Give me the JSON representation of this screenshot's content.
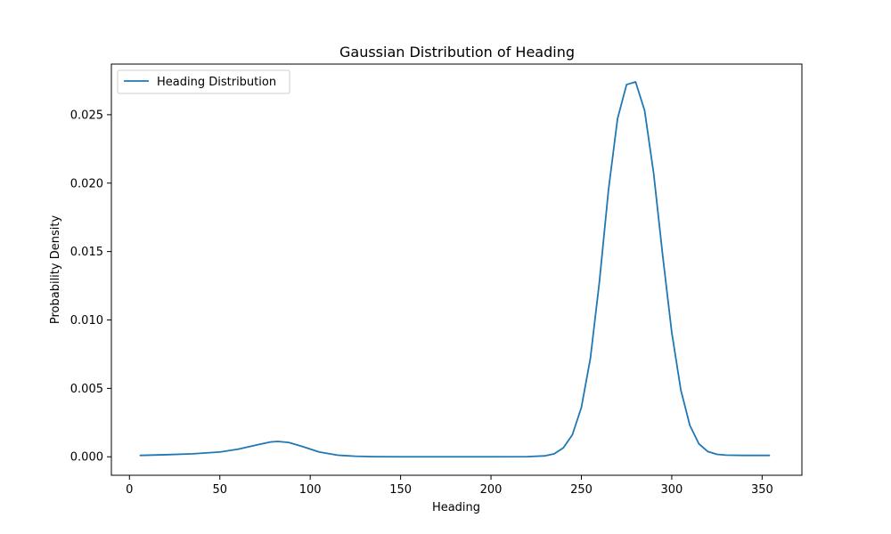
{
  "chart_data": {
    "type": "line",
    "title": "Gaussian Distribution of Heading",
    "xlabel": "Heading",
    "ylabel": "Probability Density",
    "xlim": [
      -10,
      372
    ],
    "ylim": [
      -0.00135,
      0.0287
    ],
    "xticks": [
      0,
      50,
      100,
      150,
      200,
      250,
      300,
      350
    ],
    "yticks": [
      0.0,
      0.005,
      0.01,
      0.015,
      0.02,
      0.025
    ],
    "ytick_labels": [
      "0.000",
      "0.005",
      "0.010",
      "0.015",
      "0.020",
      "0.025"
    ],
    "grid": false,
    "legend_position": "top-left",
    "series": [
      {
        "name": "Heading Distribution",
        "color": "#1f77b4",
        "x": [
          6,
          20,
          35,
          50,
          60,
          70,
          78,
          82,
          88,
          95,
          105,
          115,
          125,
          135,
          150,
          175,
          200,
          220,
          230,
          235,
          240,
          245,
          250,
          255,
          260,
          265,
          270,
          275,
          280,
          285,
          290,
          295,
          300,
          305,
          310,
          315,
          320,
          325,
          330,
          340,
          354
        ],
        "y": [
          0.0001,
          0.00015,
          0.00022,
          0.00035,
          0.00055,
          0.00085,
          0.00108,
          0.00112,
          0.00105,
          0.00078,
          0.00035,
          0.00012,
          4e-05,
          1e-05,
          0.0,
          0.0,
          0.0,
          1e-05,
          7e-05,
          0.00022,
          0.00065,
          0.0016,
          0.0036,
          0.0072,
          0.0128,
          0.0195,
          0.0247,
          0.0272,
          0.0274,
          0.0253,
          0.0207,
          0.0147,
          0.0091,
          0.0049,
          0.0023,
          0.00095,
          0.00038,
          0.00018,
          0.00012,
          0.0001,
          0.0001
        ]
      }
    ]
  }
}
